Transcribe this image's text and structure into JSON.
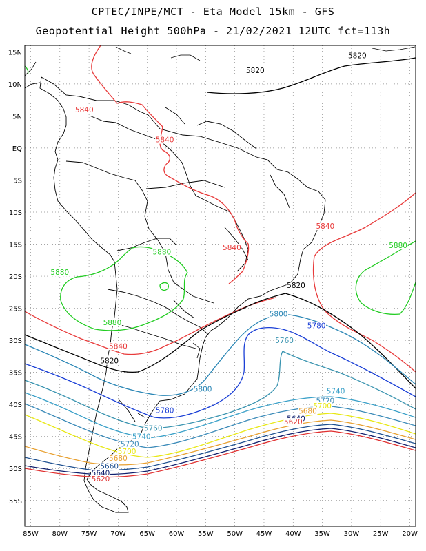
{
  "header": {
    "line1": "CPTEC/INPE/MCT -  Eta Model 15km - GFS",
    "line2": "Geopotential Height 500hPa - 21/02/2021 12UTC fct=113h"
  },
  "map": {
    "lat_labels": [
      "15N",
      "10N",
      "5N",
      "EQ",
      "5S",
      "10S",
      "15S",
      "20S",
      "25S",
      "30S",
      "35S",
      "40S",
      "45S",
      "50S",
      "55S"
    ],
    "lon_labels": [
      "85W",
      "80W",
      "75W",
      "70W",
      "65W",
      "60W",
      "55W",
      "50W",
      "45W",
      "40W",
      "35W",
      "30W",
      "25W",
      "20W"
    ],
    "lon_range": [
      -86,
      -19
    ],
    "lat_range": [
      16,
      -59
    ],
    "grid": "dotted"
  },
  "contour_colors": {
    "5880": "#22cc22",
    "5840": "#e83a3a",
    "5820": "#000000",
    "5800": "#2a86b5",
    "5780": "#1a3fd6",
    "5760": "#3a94b0",
    "5740": "#3aa0c8",
    "5720": "#3a8ab8",
    "5700": "#e8e814",
    "5680": "#e8a030",
    "5660": "#1e5090",
    "5640": "#10206e",
    "5620": "#e03030"
  },
  "contour_labels": [
    {
      "text": "5820",
      "lon": -46.5,
      "lat": 11.8,
      "color": "5820"
    },
    {
      "text": "5820",
      "lon": -29.0,
      "lat": 14.1,
      "color": "5820"
    },
    {
      "text": "5840",
      "lon": -75.8,
      "lat": 5.7,
      "color": "5840"
    },
    {
      "text": "5840",
      "lon": -62.0,
      "lat": 1.0,
      "color": "5840"
    },
    {
      "text": "5840",
      "lon": -50.5,
      "lat": -15.8,
      "color": "5840"
    },
    {
      "text": "5840",
      "lon": -34.5,
      "lat": -12.5,
      "color": "5840"
    },
    {
      "text": "5840",
      "lon": -70.0,
      "lat": -31.2,
      "color": "5840"
    },
    {
      "text": "5880",
      "lon": -62.5,
      "lat": -16.5,
      "color": "5880"
    },
    {
      "text": "5880",
      "lon": -80.0,
      "lat": -19.7,
      "color": "5880"
    },
    {
      "text": "5880",
      "lon": -71.0,
      "lat": -27.5,
      "color": "5880"
    },
    {
      "text": "5880",
      "lon": -22.0,
      "lat": -15.5,
      "color": "5880"
    },
    {
      "text": "5820",
      "lon": -39.5,
      "lat": -21.7,
      "color": "5820"
    },
    {
      "text": "5820",
      "lon": -71.5,
      "lat": -33.5,
      "color": "5820"
    },
    {
      "text": "5800",
      "lon": -42.5,
      "lat": -26.2,
      "color": "5800"
    },
    {
      "text": "5800",
      "lon": -55.5,
      "lat": -37.9,
      "color": "5800"
    },
    {
      "text": "5780",
      "lon": -36.0,
      "lat": -28.0,
      "color": "5780"
    },
    {
      "text": "5780",
      "lon": -62.0,
      "lat": -41.2,
      "color": "5780"
    },
    {
      "text": "5760",
      "lon": -41.5,
      "lat": -30.3,
      "color": "5760"
    },
    {
      "text": "5760",
      "lon": -64.0,
      "lat": -44.0,
      "color": "5760"
    },
    {
      "text": "5740",
      "lon": -32.7,
      "lat": -38.2,
      "color": "5740"
    },
    {
      "text": "5740",
      "lon": -66.0,
      "lat": -45.3,
      "color": "5740"
    },
    {
      "text": "5720",
      "lon": -34.5,
      "lat": -39.7,
      "color": "5720"
    },
    {
      "text": "5720",
      "lon": -68.0,
      "lat": -46.5,
      "color": "5720"
    },
    {
      "text": "5700",
      "lon": -35.0,
      "lat": -40.5,
      "color": "5700"
    },
    {
      "text": "5700",
      "lon": -68.5,
      "lat": -47.6,
      "color": "5700"
    },
    {
      "text": "5680",
      "lon": -37.5,
      "lat": -41.3,
      "color": "5680"
    },
    {
      "text": "5680",
      "lon": -70.0,
      "lat": -48.7,
      "color": "5680"
    },
    {
      "text": "5660",
      "lon": -71.5,
      "lat": -49.9,
      "color": "5660"
    },
    {
      "text": "5640",
      "lon": -39.5,
      "lat": -42.5,
      "color": "5640"
    },
    {
      "text": "5640",
      "lon": -73.0,
      "lat": -51.0,
      "color": "5640"
    },
    {
      "text": "5620",
      "lon": -40.0,
      "lat": -43.0,
      "color": "5620"
    },
    {
      "text": "5620",
      "lon": -73.0,
      "lat": -51.9,
      "color": "5620"
    }
  ]
}
